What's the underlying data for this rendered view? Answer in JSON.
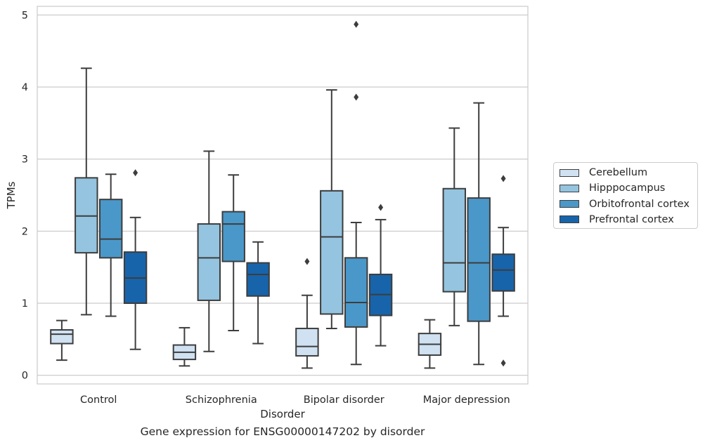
{
  "caption": "Gene expression for ENSG00000147202 by disorder",
  "chart_data": {
    "type": "box",
    "title": "",
    "xlabel": "Disorder",
    "ylabel": "TPMs",
    "categories": [
      "Control",
      "Schizophrenia",
      "Bipolar disorder",
      "Major depression"
    ],
    "yticks": [
      "0",
      "1",
      "2",
      "3",
      "4",
      "5"
    ],
    "ylim": [
      -0.12,
      5.12
    ],
    "grid": "horizontal",
    "legend_placement": "right",
    "series": [
      {
        "name": "Cerebellum",
        "color": "#d0e1f2",
        "boxes": [
          {
            "category": "Control",
            "whisker_low": 0.21,
            "q1": 0.44,
            "median": 0.57,
            "q3": 0.63,
            "whisker_high": 0.76,
            "outliers": []
          },
          {
            "category": "Schizophrenia",
            "whisker_low": 0.13,
            "q1": 0.22,
            "median": 0.32,
            "q3": 0.42,
            "whisker_high": 0.66,
            "outliers": []
          },
          {
            "category": "Bipolar disorder",
            "whisker_low": 0.1,
            "q1": 0.27,
            "median": 0.4,
            "q3": 0.65,
            "whisker_high": 1.11,
            "outliers": [
              1.58
            ]
          },
          {
            "category": "Major depression",
            "whisker_low": 0.1,
            "q1": 0.28,
            "median": 0.43,
            "q3": 0.58,
            "whisker_high": 0.77,
            "outliers": []
          }
        ]
      },
      {
        "name": "Hipppocampus",
        "color": "#94c4df",
        "boxes": [
          {
            "category": "Control",
            "whisker_low": 0.84,
            "q1": 1.7,
            "median": 2.21,
            "q3": 2.74,
            "whisker_high": 4.26,
            "outliers": []
          },
          {
            "category": "Schizophrenia",
            "whisker_low": 0.33,
            "q1": 1.04,
            "median": 1.63,
            "q3": 2.1,
            "whisker_high": 3.11,
            "outliers": []
          },
          {
            "category": "Bipolar disorder",
            "whisker_low": 0.65,
            "q1": 0.85,
            "median": 1.92,
            "q3": 2.56,
            "whisker_high": 3.96,
            "outliers": []
          },
          {
            "category": "Major depression",
            "whisker_low": 0.69,
            "q1": 1.16,
            "median": 1.56,
            "q3": 2.59,
            "whisker_high": 3.43,
            "outliers": []
          }
        ]
      },
      {
        "name": "Orbitofrontal cortex",
        "color": "#4a98c9",
        "boxes": [
          {
            "category": "Control",
            "whisker_low": 0.82,
            "q1": 1.63,
            "median": 1.89,
            "q3": 2.44,
            "whisker_high": 2.79,
            "outliers": []
          },
          {
            "category": "Schizophrenia",
            "whisker_low": 0.62,
            "q1": 1.58,
            "median": 2.1,
            "q3": 2.27,
            "whisker_high": 2.78,
            "outliers": []
          },
          {
            "category": "Bipolar disorder",
            "whisker_low": 0.15,
            "q1": 0.67,
            "median": 1.01,
            "q3": 1.63,
            "whisker_high": 2.12,
            "outliers": [
              3.86,
              4.87
            ]
          },
          {
            "category": "Major depression",
            "whisker_low": 0.15,
            "q1": 0.75,
            "median": 1.56,
            "q3": 2.46,
            "whisker_high": 3.78,
            "outliers": []
          }
        ]
      },
      {
        "name": "Prefrontal cortex",
        "color": "#1764ab",
        "boxes": [
          {
            "category": "Control",
            "whisker_low": 0.36,
            "q1": 1.0,
            "median": 1.35,
            "q3": 1.71,
            "whisker_high": 2.19,
            "outliers": [
              2.81
            ]
          },
          {
            "category": "Schizophrenia",
            "whisker_low": 0.44,
            "q1": 1.1,
            "median": 1.4,
            "q3": 1.56,
            "whisker_high": 1.85,
            "outliers": []
          },
          {
            "category": "Bipolar disorder",
            "whisker_low": 0.41,
            "q1": 0.83,
            "median": 1.12,
            "q3": 1.4,
            "whisker_high": 2.16,
            "outliers": [
              2.33
            ]
          },
          {
            "category": "Major depression",
            "whisker_low": 0.82,
            "q1": 1.17,
            "median": 1.46,
            "q3": 1.68,
            "whisker_high": 2.05,
            "outliers": [
              0.17,
              2.73
            ]
          }
        ]
      }
    ]
  }
}
